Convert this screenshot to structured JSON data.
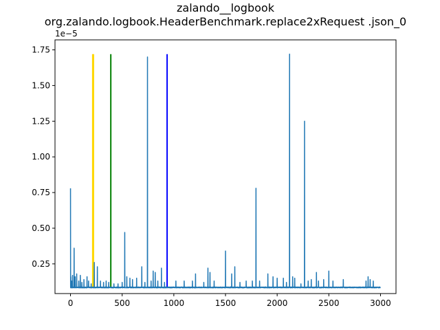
{
  "chart_data": {
    "type": "line",
    "title_line1": "zalando__logbook",
    "title_line2": "org.zalando.logbook.HeaderBenchmark.replace2xRequest .json_0",
    "y_offset_label": "1e−5",
    "xlim": [
      -150,
      3150
    ],
    "ylim": [
      4.2e-07,
      1.82e-05
    ],
    "x_ticks": [
      0,
      500,
      1000,
      1500,
      2000,
      2500,
      3000
    ],
    "x_tick_labels": [
      "0",
      "500",
      "1000",
      "1500",
      "2000",
      "2500",
      "3000"
    ],
    "y_ticks": [
      2.5e-06,
      5e-06,
      7.5e-06,
      1e-05,
      1.25e-05,
      1.5e-05,
      1.75e-05
    ],
    "y_tick_labels": [
      "0.25",
      "0.50",
      "0.75",
      "1.00",
      "1.25",
      "1.50",
      "1.75"
    ],
    "n_points": 3000,
    "baseline": 8.5e-07,
    "series_color": "#1f77b4",
    "spikes": [
      [
        0,
        7.8e-06
      ],
      [
        3,
        1.6e-06
      ],
      [
        10,
        1.3e-06
      ],
      [
        20,
        1.7e-06
      ],
      [
        35,
        3.6e-06
      ],
      [
        45,
        1.6e-06
      ],
      [
        60,
        1.8e-06
      ],
      [
        80,
        1.3e-06
      ],
      [
        95,
        1.7e-06
      ],
      [
        110,
        1.2e-06
      ],
      [
        130,
        1.4e-06
      ],
      [
        160,
        1.6e-06
      ],
      [
        175,
        1.3e-06
      ],
      [
        200,
        1.1e-06
      ],
      [
        230,
        2.6e-06
      ],
      [
        260,
        2.3e-06
      ],
      [
        290,
        1.3e-06
      ],
      [
        320,
        1.2e-06
      ],
      [
        345,
        1.3e-06
      ],
      [
        370,
        1.2e-06
      ],
      [
        420,
        1.1e-06
      ],
      [
        460,
        1.1e-06
      ],
      [
        500,
        1.2e-06
      ],
      [
        525,
        4.7e-06
      ],
      [
        545,
        1.6e-06
      ],
      [
        575,
        1.5e-06
      ],
      [
        600,
        1.4e-06
      ],
      [
        640,
        1.5e-06
      ],
      [
        690,
        2.3e-06
      ],
      [
        720,
        1.2e-06
      ],
      [
        745,
        1.7e-05
      ],
      [
        780,
        1.3e-06
      ],
      [
        800,
        2e-06
      ],
      [
        820,
        1.9e-06
      ],
      [
        845,
        1.3e-06
      ],
      [
        880,
        2.2e-06
      ],
      [
        910,
        1.2e-06
      ],
      [
        1020,
        1.3e-06
      ],
      [
        1100,
        1.3e-06
      ],
      [
        1180,
        1.3e-06
      ],
      [
        1210,
        1.8e-06
      ],
      [
        1290,
        1.2e-06
      ],
      [
        1330,
        2.2e-06
      ],
      [
        1350,
        1.9e-06
      ],
      [
        1390,
        1.3e-06
      ],
      [
        1500,
        3.4e-06
      ],
      [
        1560,
        1.8e-06
      ],
      [
        1590,
        2.3e-06
      ],
      [
        1640,
        1.2e-06
      ],
      [
        1700,
        1.3e-06
      ],
      [
        1760,
        1.3e-06
      ],
      [
        1795,
        7.8e-06
      ],
      [
        1830,
        1.3e-06
      ],
      [
        1910,
        1.8e-06
      ],
      [
        1960,
        1.6e-06
      ],
      [
        2000,
        1.5e-06
      ],
      [
        2060,
        1.5e-06
      ],
      [
        2090,
        1.2e-06
      ],
      [
        2120,
        1.72e-05
      ],
      [
        2150,
        1.6e-06
      ],
      [
        2170,
        1.5e-06
      ],
      [
        2230,
        1.1e-06
      ],
      [
        2265,
        1.25e-05
      ],
      [
        2300,
        1.3e-06
      ],
      [
        2330,
        1.4e-06
      ],
      [
        2380,
        1.9e-06
      ],
      [
        2400,
        1.3e-06
      ],
      [
        2450,
        1.4e-06
      ],
      [
        2500,
        2e-06
      ],
      [
        2540,
        1.3e-06
      ],
      [
        2640,
        1.4e-06
      ],
      [
        2860,
        1.3e-06
      ],
      [
        2880,
        1.6e-06
      ],
      [
        2900,
        1.4e-06
      ],
      [
        2930,
        1.3e-06
      ]
    ],
    "vertical_lines": [
      {
        "x": 215,
        "color": "#ffd700"
      },
      {
        "x": 222,
        "color": "#ffd700"
      },
      {
        "x": 390,
        "color": "#008000"
      },
      {
        "x": 935,
        "color": "#0000ff"
      }
    ],
    "vertical_line_top": 1.72e-05
  }
}
